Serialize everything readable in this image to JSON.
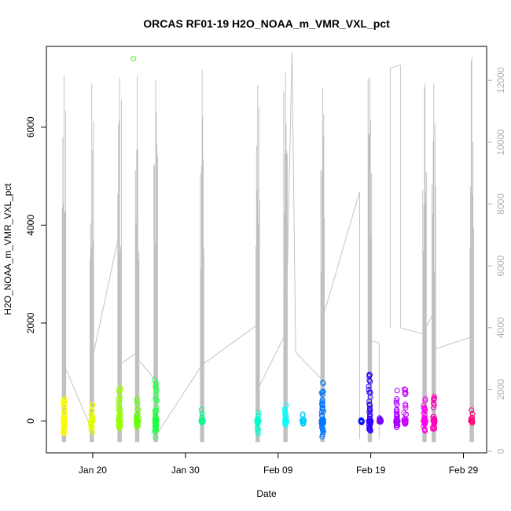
{
  "chart_data": {
    "type": "scatter",
    "title": "ORCAS RF01-19 H2O_NOAA_m_VMR_VXL_pct",
    "xlabel": "Date",
    "ylabel": "H2O_NOAA_m_VMR_VXL_pct",
    "x_ticks": [
      "Jan 20",
      "Jan 30",
      "Feb 09",
      "Feb 19",
      "Feb 29"
    ],
    "x_tick_days": [
      19,
      29,
      39,
      49,
      59
    ],
    "xlim": [
      14.0,
      61.5
    ],
    "ylim": [
      -650,
      7650
    ],
    "y_ticks": [
      0,
      2000,
      4000,
      6000
    ],
    "y2lim": [
      -50,
      13100
    ],
    "y2_ticks": [
      0,
      2000,
      4000,
      6000,
      8000,
      10000,
      12000
    ],
    "y2_color": "#b0b0b0",
    "marker": "open-circle",
    "grid": false,
    "flights": [
      {
        "day": 15.9,
        "min": -250,
        "max": 450,
        "color": "#ffff00"
      },
      {
        "day": 18.9,
        "min": -230,
        "max": 330,
        "color": "#e5ff00"
      },
      {
        "day": 21.9,
        "min": -150,
        "max": 680,
        "color": "#99ff00"
      },
      {
        "day": 23.8,
        "min": -120,
        "max": 450,
        "color": "#66ff00"
      },
      {
        "day": 25.8,
        "min": -330,
        "max": 830,
        "color": "#22ff44"
      },
      {
        "day": 30.8,
        "min": -30,
        "max": 230,
        "color": "#00ff88"
      },
      {
        "day": 36.8,
        "min": -260,
        "max": 170,
        "color": "#00ffcc"
      },
      {
        "day": 39.8,
        "min": -80,
        "max": 320,
        "color": "#00ffff"
      },
      {
        "day": 41.7,
        "min": -60,
        "max": 140,
        "color": "#00ccff"
      },
      {
        "day": 43.8,
        "min": -320,
        "max": 780,
        "color": "#0077ff"
      },
      {
        "day": 48.0,
        "min": -30,
        "max": 20,
        "color": "#0011ff"
      },
      {
        "day": 48.9,
        "min": -200,
        "max": 950,
        "color": "#3300ff"
      },
      {
        "day": 50.0,
        "min": -20,
        "max": 60,
        "color": "#7700ff"
      },
      {
        "day": 51.8,
        "min": -130,
        "max": 620,
        "color": "#aa00ff"
      },
      {
        "day": 52.7,
        "min": -60,
        "max": 650,
        "color": "#cc00ff"
      },
      {
        "day": 54.8,
        "min": -200,
        "max": 450,
        "color": "#ff00ee"
      },
      {
        "day": 55.8,
        "min": -160,
        "max": 500,
        "color": "#ff00bb"
      },
      {
        "day": 59.9,
        "min": -40,
        "max": 220,
        "color": "#ff0077"
      }
    ],
    "outliers": [
      {
        "day": 23.4,
        "y": 7400,
        "color": "#33ff00"
      }
    ],
    "right_axis_series": {
      "name": "",
      "color": "#bebebe",
      "spikes": [
        {
          "day": 15.9,
          "min": 300,
          "max": 12150
        },
        {
          "day": 18.9,
          "min": 300,
          "max": 11900
        },
        {
          "day": 21.9,
          "min": 300,
          "max": 12100
        },
        {
          "day": 23.8,
          "min": 300,
          "max": 12150
        },
        {
          "day": 25.8,
          "min": 300,
          "max": 12000
        },
        {
          "day": 30.8,
          "min": 300,
          "max": 12350
        },
        {
          "day": 36.8,
          "min": 300,
          "max": 11850
        },
        {
          "day": 39.8,
          "min": 300,
          "max": 12250
        },
        {
          "day": 43.8,
          "min": 300,
          "max": 11750
        },
        {
          "day": 48.9,
          "min": 300,
          "max": 12100
        },
        {
          "day": 54.8,
          "min": 300,
          "max": 11900
        },
        {
          "day": 55.8,
          "min": 300,
          "max": 11900
        },
        {
          "day": 59.9,
          "min": 300,
          "max": 12750
        }
      ],
      "connectors": [
        [
          [
            15.9,
            2800
          ],
          [
            18.9,
            700
          ]
        ],
        [
          [
            18.9,
            2900
          ],
          [
            21.9,
            7100
          ]
        ],
        [
          [
            21.9,
            2800
          ],
          [
            23.8,
            3200
          ]
        ],
        [
          [
            23.8,
            3000
          ],
          [
            25.8,
            2300
          ]
        ],
        [
          [
            25.8,
            500
          ],
          [
            30.8,
            2800
          ]
        ],
        [
          [
            30.8,
            2800
          ],
          [
            36.8,
            4100
          ]
        ],
        [
          [
            36.8,
            2000
          ],
          [
            39.8,
            3800
          ]
        ],
        [
          [
            39.8,
            3000
          ],
          [
            40.5,
            12900
          ]
        ],
        [
          [
            40.5,
            12900
          ],
          [
            40.9,
            3200
          ]
        ],
        [
          [
            40.9,
            3200
          ],
          [
            43.8,
            2300
          ]
        ],
        [
          [
            43.8,
            4300
          ],
          [
            47.8,
            8400
          ]
        ],
        [
          [
            47.8,
            8400
          ],
          [
            47.8,
            400
          ]
        ],
        [
          [
            48.9,
            3600
          ],
          [
            49.9,
            3500
          ]
        ],
        [
          [
            49.9,
            3500
          ],
          [
            49.9,
            400
          ]
        ],
        [
          [
            51.1,
            4000
          ],
          [
            51.1,
            12400
          ]
        ],
        [
          [
            51.1,
            12400
          ],
          [
            52.2,
            12500
          ]
        ],
        [
          [
            52.2,
            12500
          ],
          [
            52.2,
            4000
          ]
        ],
        [
          [
            52.2,
            4000
          ],
          [
            54.6,
            3800
          ]
        ],
        [
          [
            54.6,
            3800
          ],
          [
            55.8,
            4500
          ]
        ],
        [
          [
            55.8,
            3300
          ],
          [
            59.9,
            3700
          ]
        ]
      ]
    }
  }
}
